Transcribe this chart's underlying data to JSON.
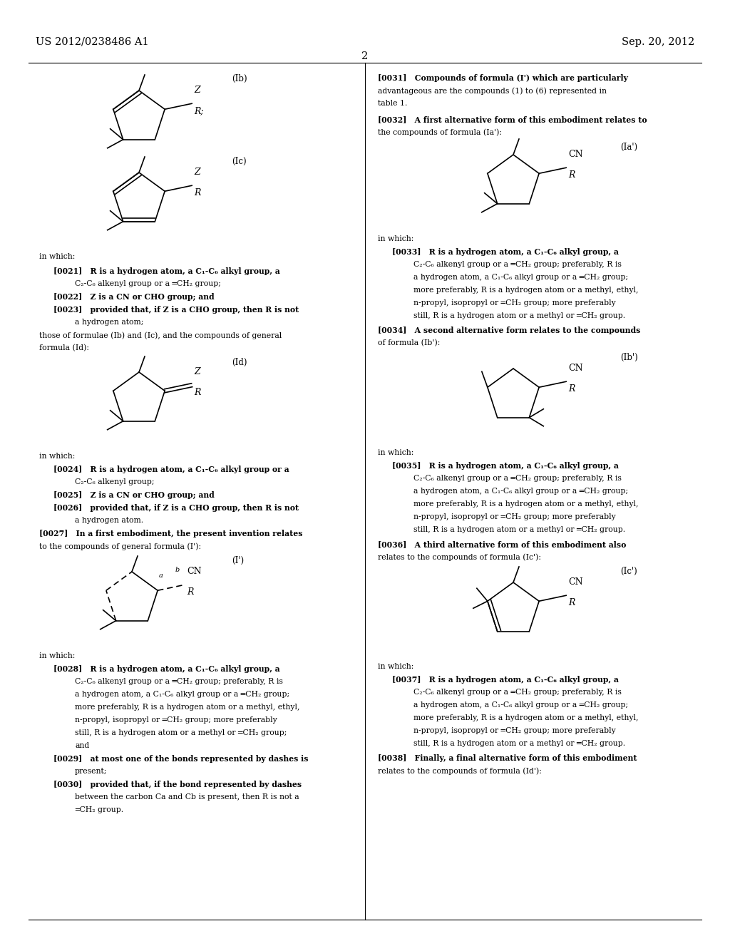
{
  "background_color": "#ffffff",
  "header_left": "US 2012/0238486 A1",
  "header_right": "Sep. 20, 2012",
  "page_number": "2",
  "lw": 1.2,
  "ring_r": 35,
  "text_fontsize": 7.8,
  "label_fontsize": 8.5
}
